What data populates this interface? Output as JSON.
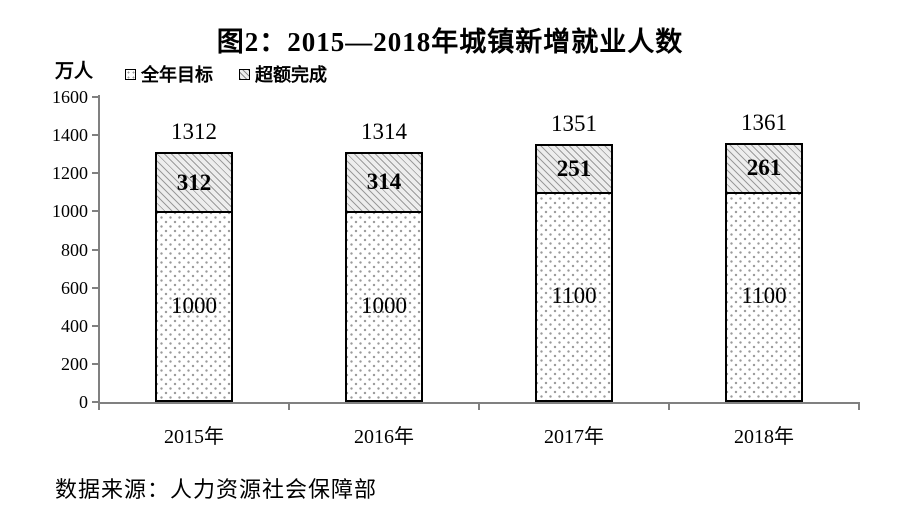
{
  "title": "图2：2015—2018年城镇新增就业人数",
  "unit_label": "万人",
  "source": "数据来源：人力资源社会保障部",
  "legend": [
    {
      "label": "全年目标",
      "pattern": "dots"
    },
    {
      "label": "超额完成",
      "pattern": "hatch"
    }
  ],
  "colors": {
    "axis": "#808080",
    "text": "#000000",
    "bar_border": "#000000",
    "hatch_ink": "#9b9b9b",
    "hatch_bg": "#ededed",
    "dots_ink": "#9a9a9a",
    "dots_bg": "#ffffff"
  },
  "chart_data": {
    "type": "bar",
    "stacked": true,
    "categories": [
      "2015年",
      "2016年",
      "2017年",
      "2018年"
    ],
    "series": [
      {
        "name": "全年目标",
        "pattern": "dots",
        "values": [
          1000,
          1000,
          1100,
          1100
        ]
      },
      {
        "name": "超额完成",
        "pattern": "hatch",
        "values": [
          312,
          314,
          251,
          261
        ]
      }
    ],
    "totals": [
      1312,
      1314,
      1351,
      1361
    ],
    "title": "图2：2015—2018年城镇新增就业人数",
    "xlabel": "",
    "ylabel": "万人",
    "ylim": [
      0,
      1600
    ],
    "ytick_step": 200,
    "yticks": [
      0,
      200,
      400,
      600,
      800,
      1000,
      1200,
      1400,
      1600
    ],
    "legend_position": "top-left",
    "grid": false
  }
}
